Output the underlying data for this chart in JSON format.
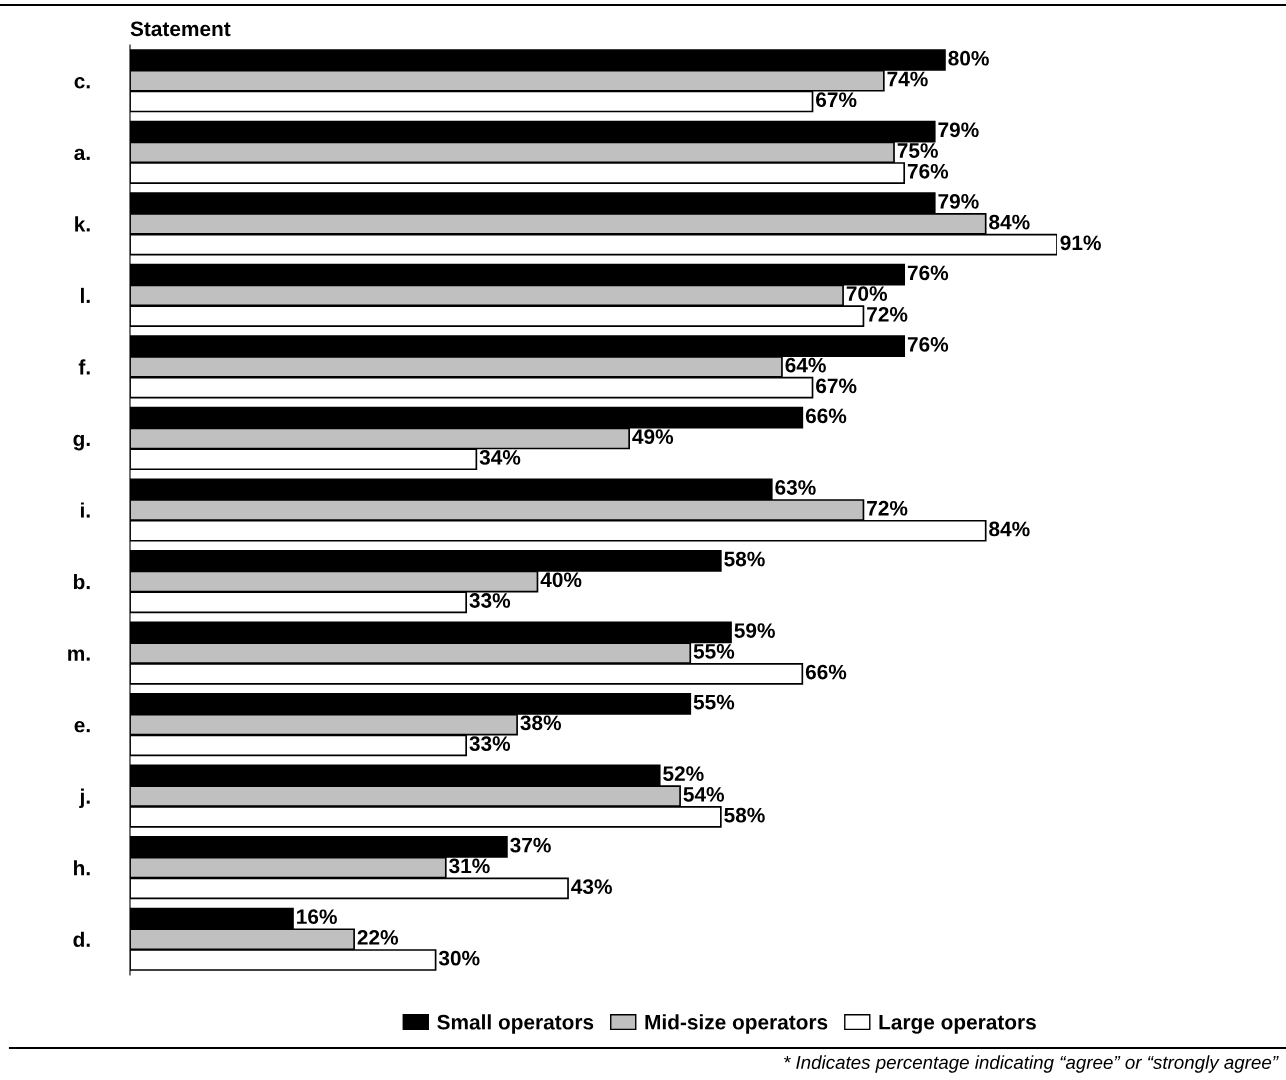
{
  "chart_data": {
    "type": "bar",
    "orientation": "horizontal",
    "ylabel": "Statement",
    "categories": [
      "c.",
      "a.",
      "k.",
      "l.",
      "f.",
      "g.",
      "i.",
      "b.",
      "m.",
      "e.",
      "j.",
      "h.",
      "d."
    ],
    "series": [
      {
        "name": "Small operators",
        "color": "#000000",
        "values": [
          80,
          79,
          79,
          76,
          76,
          66,
          63,
          58,
          59,
          55,
          52,
          37,
          16
        ],
        "value_labels": [
          "80%",
          "79%",
          "79%",
          "76%",
          "76%",
          "66%",
          "63%",
          "58%",
          "59%",
          "55%",
          "52%",
          "37%",
          "16%"
        ]
      },
      {
        "name": "Mid-size operators",
        "color": "#c0c0c0",
        "values": [
          74,
          75,
          84,
          70,
          64,
          49,
          72,
          40,
          55,
          38,
          54,
          31,
          22
        ],
        "value_labels": [
          "74%",
          "75%",
          "84%",
          "70%",
          "64%",
          "49%",
          "72%",
          "40%",
          "55%",
          "38%",
          "54%",
          "31%",
          "22%"
        ]
      },
      {
        "name": "Large operators",
        "color": "#ffffff",
        "values": [
          67,
          76,
          91,
          72,
          67,
          34,
          84,
          33,
          66,
          33,
          58,
          43,
          30
        ],
        "value_labels": [
          "67%",
          "76%",
          "91%",
          "72%",
          "67%",
          "34%",
          "84%",
          "33%",
          "66%",
          "33%",
          "58%",
          "43%",
          "30%"
        ]
      }
    ],
    "tick_labels": "y",
    "legend": "bottom",
    "annotations": [
      "* Indicates percentage indicating “agree” or “strongly agree”"
    ]
  }
}
